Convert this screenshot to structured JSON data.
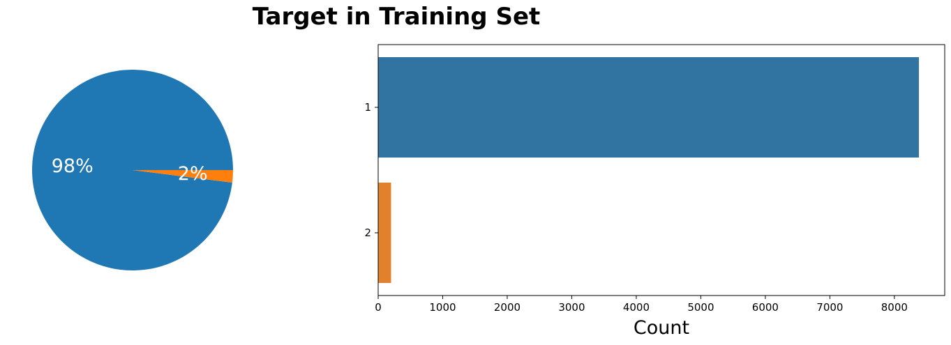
{
  "figure": {
    "title": "Target in Training Set"
  },
  "chart_data": [
    {
      "type": "pie",
      "categories": [
        "1",
        "2"
      ],
      "values": [
        98,
        2
      ],
      "labels": [
        "98%",
        "2%"
      ],
      "colors": [
        "#1f77b4",
        "#ff7f0e"
      ]
    },
    {
      "type": "bar",
      "orientation": "horizontal",
      "categories": [
        "1",
        "2"
      ],
      "values": [
        8380,
        200
      ],
      "colors": [
        "#3274a1",
        "#e1812c"
      ],
      "xlabel": "Count",
      "ylabel": "",
      "xlim": [
        0,
        8780
      ],
      "xticks": [
        0,
        1000,
        2000,
        3000,
        4000,
        5000,
        6000,
        7000,
        8000
      ],
      "grid": false
    }
  ]
}
